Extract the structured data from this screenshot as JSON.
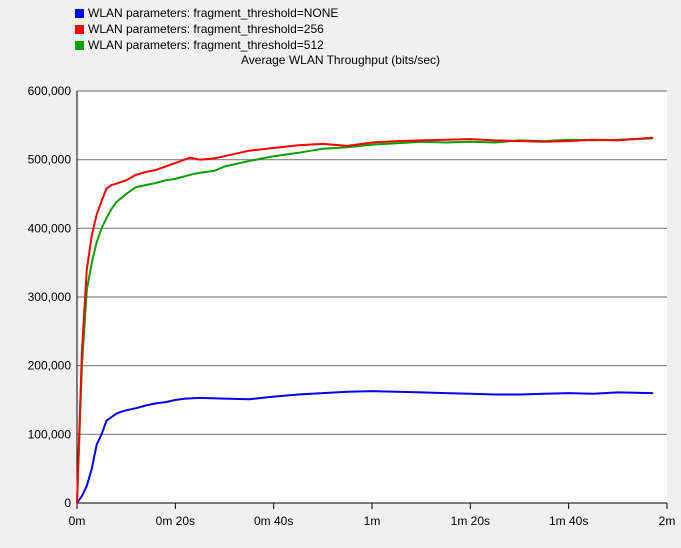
{
  "chart_data": {
    "type": "line",
    "title": "Average WLAN Throughput (bits/sec)",
    "xlabel": "",
    "ylabel": "",
    "xlim": [
      0,
      117
    ],
    "ylim": [
      0,
      600000
    ],
    "x_tick_values": [
      0,
      20,
      40,
      60,
      80,
      100,
      120
    ],
    "x_tick_labels": [
      "0m",
      "0m 20s",
      "0m 40s",
      "1m",
      "1m 20s",
      "1m 40s",
      "2m"
    ],
    "y_tick_values": [
      0,
      100000,
      200000,
      300000,
      400000,
      500000,
      600000
    ],
    "y_tick_labels": [
      "0",
      "100,000",
      "200,000",
      "300,000",
      "400,000",
      "500,000",
      "600,000"
    ],
    "grid": "horizontal",
    "legend_position": "top-left",
    "series": [
      {
        "name": "WLAN parameters: fragment_threshold=NONE",
        "color": "#0000ff",
        "x": [
          0,
          1,
          2,
          3,
          4,
          5,
          6,
          7,
          8,
          9,
          10,
          12,
          14,
          16,
          18,
          20,
          22,
          25,
          30,
          35,
          40,
          45,
          50,
          55,
          60,
          65,
          70,
          75,
          80,
          85,
          90,
          95,
          100,
          105,
          110,
          117
        ],
        "y": [
          0,
          10000,
          25000,
          50000,
          85000,
          100000,
          120000,
          125000,
          130000,
          133000,
          135000,
          138000,
          142000,
          145000,
          147000,
          150000,
          152000,
          153000,
          152000,
          151000,
          155000,
          158000,
          160000,
          162000,
          163000,
          162000,
          161000,
          160000,
          159000,
          158000,
          158000,
          159000,
          160000,
          159000,
          161000,
          160000
        ]
      },
      {
        "name": "WLAN parameters: fragment_threshold=256",
        "color": "#ff0000",
        "x": [
          0,
          1,
          2,
          3,
          4,
          5,
          6,
          7,
          8,
          10,
          12,
          14,
          16,
          18,
          20,
          23,
          25,
          28,
          30,
          35,
          40,
          45,
          50,
          55,
          60,
          65,
          70,
          75,
          80,
          85,
          90,
          95,
          100,
          105,
          110,
          117
        ],
        "y": [
          0,
          220000,
          340000,
          390000,
          420000,
          440000,
          458000,
          463000,
          465000,
          470000,
          478000,
          482000,
          485000,
          490000,
          495000,
          503000,
          500000,
          502000,
          505000,
          513000,
          517000,
          521000,
          523000,
          520000,
          525000,
          527000,
          528000,
          529000,
          530000,
          528000,
          527000,
          526000,
          527000,
          529000,
          528000,
          532000
        ]
      },
      {
        "name": "WLAN parameters: fragment_threshold=512",
        "color": "#00a000",
        "x": [
          0,
          1,
          2,
          3,
          4,
          5,
          6,
          7,
          8,
          10,
          12,
          14,
          16,
          18,
          20,
          23,
          25,
          28,
          30,
          35,
          40,
          45,
          50,
          55,
          60,
          65,
          70,
          75,
          80,
          85,
          90,
          95,
          100,
          105,
          110,
          117
        ],
        "y": [
          0,
          200000,
          310000,
          350000,
          380000,
          400000,
          415000,
          428000,
          438000,
          450000,
          460000,
          463000,
          466000,
          470000,
          472000,
          478000,
          481000,
          484000,
          490000,
          498000,
          505000,
          510000,
          516000,
          518000,
          522000,
          524000,
          526000,
          525000,
          526000,
          525000,
          528000,
          527000,
          529000,
          528000,
          529000,
          531000
        ]
      }
    ]
  }
}
